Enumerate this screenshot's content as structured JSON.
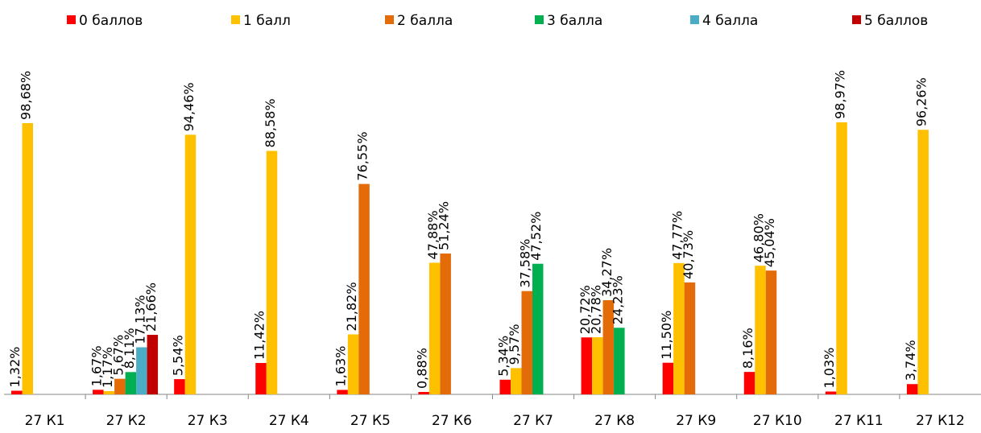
{
  "chart_data": {
    "type": "bar",
    "categories": [
      "27 К1",
      "27 К2",
      "27 К3",
      "27 К4",
      "27 К5",
      "27 К6",
      "27 К7",
      "27 К8",
      "27 К9",
      "27 К10",
      "27 К11",
      "27 К12"
    ],
    "series": [
      {
        "name": "0 баллов",
        "color": "#ff0000",
        "values": [
          1.32,
          1.67,
          5.54,
          11.42,
          1.63,
          0.88,
          5.34,
          20.72,
          11.5,
          8.16,
          1.03,
          3.74
        ],
        "value_labels": [
          "1,32%",
          "1,67%",
          "5,54%",
          "11,42%",
          "1,63%",
          "0,88%",
          "5,34%",
          "20,72%",
          "11,50%",
          "8,16%",
          "1,03%",
          "3,74%"
        ]
      },
      {
        "name": "1 балл",
        "color": "#ffc000",
        "values": [
          98.68,
          1.17,
          94.46,
          88.58,
          21.82,
          47.88,
          9.57,
          20.78,
          47.77,
          46.8,
          98.97,
          96.26
        ],
        "value_labels": [
          "98,68%",
          "1,17%",
          "94,46%",
          "88,58%",
          "21,82%",
          "47,88%",
          "9,57%",
          "20,78%",
          "47,77%",
          "46,80%",
          "98,97%",
          "96,26%"
        ]
      },
      {
        "name": "2 балла",
        "color": "#e36c09",
        "values": [
          null,
          5.67,
          null,
          null,
          76.55,
          51.24,
          37.58,
          34.27,
          40.73,
          45.04,
          null,
          null
        ],
        "value_labels": [
          null,
          "5,67%",
          null,
          null,
          "76,55%",
          "51,24%",
          "37,58%",
          "34,27%",
          "40,73%",
          "45,04%",
          null,
          null
        ]
      },
      {
        "name": "3 балла",
        "color": "#00b050",
        "values": [
          null,
          8.11,
          null,
          null,
          null,
          null,
          47.52,
          24.23,
          null,
          null,
          null,
          null
        ],
        "value_labels": [
          null,
          "8,11%",
          null,
          null,
          null,
          null,
          "47,52%",
          "24,23%",
          null,
          null,
          null,
          null
        ]
      },
      {
        "name": "4 балла",
        "color": "#4bacc6",
        "values": [
          null,
          17.13,
          null,
          null,
          null,
          null,
          null,
          null,
          null,
          null,
          null,
          null
        ],
        "value_labels": [
          null,
          "17,13%",
          null,
          null,
          null,
          null,
          null,
          null,
          null,
          null,
          null,
          null
        ]
      },
      {
        "name": "5 баллов",
        "color": "#c00000",
        "values": [
          null,
          21.66,
          null,
          null,
          null,
          null,
          null,
          null,
          null,
          null,
          null,
          null
        ],
        "value_labels": [
          null,
          "21,66%",
          null,
          null,
          null,
          null,
          null,
          null,
          null,
          null,
          null,
          null
        ]
      }
    ],
    "legend": "top"
  }
}
